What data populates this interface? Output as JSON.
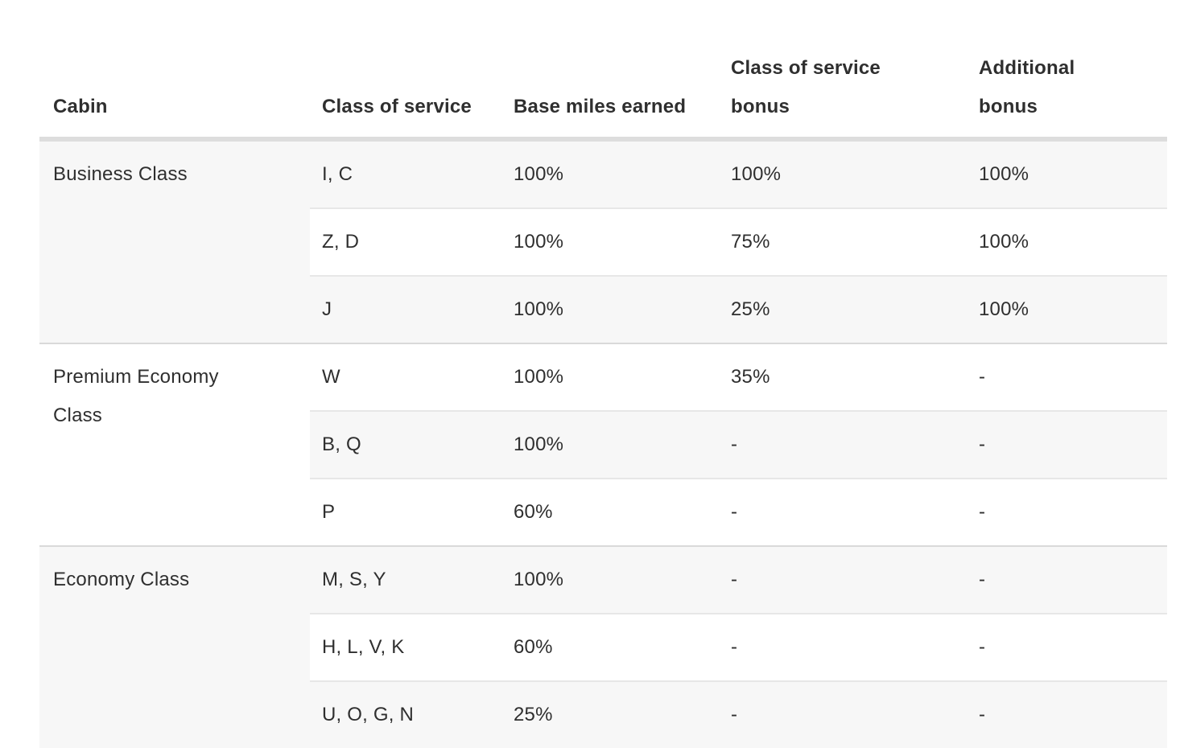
{
  "table": {
    "columns": [
      "Cabin",
      "Class of service",
      "Base miles earned",
      "Class of service bonus",
      "Additional bonus"
    ],
    "groups": [
      {
        "cabin": "Business Class",
        "rows": [
          {
            "class_of_service": "I, C",
            "base_miles_earned": "100%",
            "class_of_service_bonus": "100%",
            "additional_bonus": "100%"
          },
          {
            "class_of_service": "Z, D",
            "base_miles_earned": "100%",
            "class_of_service_bonus": "75%",
            "additional_bonus": "100%"
          },
          {
            "class_of_service": "J",
            "base_miles_earned": "100%",
            "class_of_service_bonus": "25%",
            "additional_bonus": "100%"
          }
        ]
      },
      {
        "cabin": "Premium Economy Class",
        "rows": [
          {
            "class_of_service": "W",
            "base_miles_earned": "100%",
            "class_of_service_bonus": "35%",
            "additional_bonus": "-"
          },
          {
            "class_of_service": "B, Q",
            "base_miles_earned": "100%",
            "class_of_service_bonus": "-",
            "additional_bonus": "-"
          },
          {
            "class_of_service": "P",
            "base_miles_earned": "60%",
            "class_of_service_bonus": "-",
            "additional_bonus": "-"
          }
        ]
      },
      {
        "cabin": "Economy Class",
        "rows": [
          {
            "class_of_service": "M, S, Y",
            "base_miles_earned": "100%",
            "class_of_service_bonus": "-",
            "additional_bonus": "-"
          },
          {
            "class_of_service": "H, L, V, K",
            "base_miles_earned": "60%",
            "class_of_service_bonus": "-",
            "additional_bonus": "-"
          },
          {
            "class_of_service": "U, O, G, N",
            "base_miles_earned": "25%",
            "class_of_service_bonus": "-",
            "additional_bonus": "-"
          }
        ]
      }
    ],
    "colors": {
      "text": "#2f2f2f",
      "row_alt_background": "#f7f7f7",
      "header_rule": "#dddddd",
      "group_rule": "#d9d9d9",
      "subrow_rule": "#e7e7e7"
    }
  }
}
